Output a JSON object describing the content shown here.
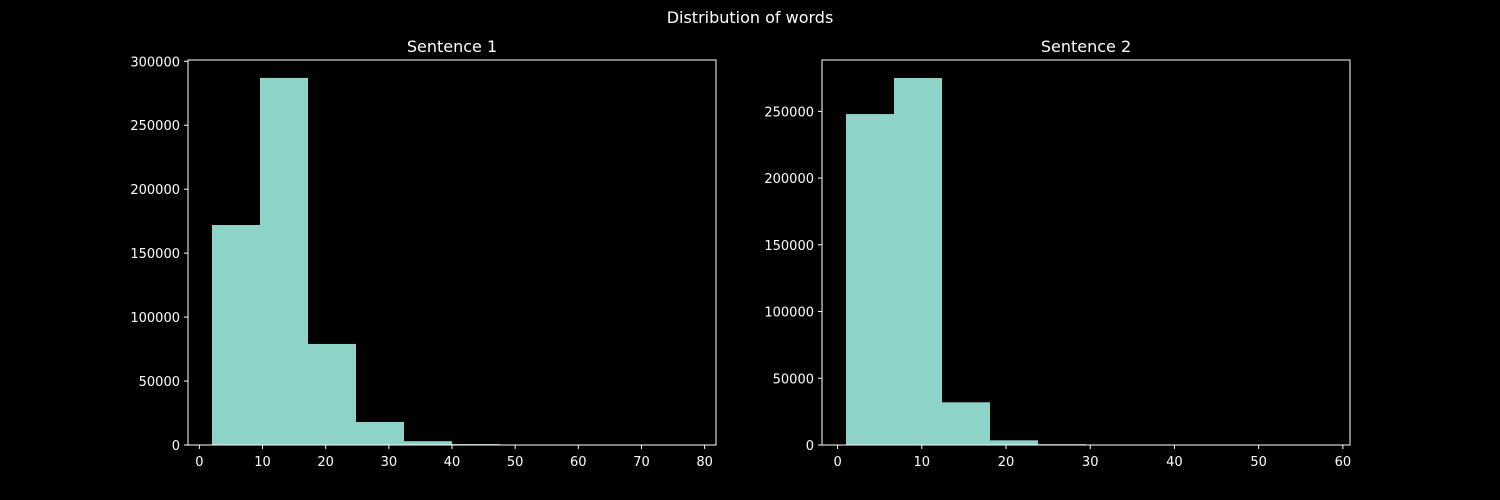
{
  "figure": {
    "suptitle": "Distribution of words",
    "background": "#000000",
    "bar_color": "#8dd3c7",
    "axis_color": "#ffffff"
  },
  "chart_data": [
    {
      "type": "histogram",
      "title": "Sentence 1",
      "xlabel": "",
      "ylabel": "",
      "xlim": [
        -1.8,
        81.8
      ],
      "ylim": [
        0,
        301000
      ],
      "xticks": [
        0,
        10,
        20,
        30,
        40,
        50,
        60,
        70,
        80
      ],
      "yticks": [
        0,
        50000,
        100000,
        150000,
        200000,
        250000,
        300000
      ],
      "bins": [
        {
          "x0": 2.0,
          "x1": 9.6,
          "count": 172000
        },
        {
          "x0": 9.6,
          "x1": 17.2,
          "count": 287000
        },
        {
          "x0": 17.2,
          "x1": 24.8,
          "count": 79000
        },
        {
          "x0": 24.8,
          "x1": 32.4,
          "count": 18000
        },
        {
          "x0": 32.4,
          "x1": 40.0,
          "count": 3000
        },
        {
          "x0": 40.0,
          "x1": 47.6,
          "count": 700
        },
        {
          "x0": 47.6,
          "x1": 55.2,
          "count": 150
        },
        {
          "x0": 55.2,
          "x1": 62.8,
          "count": 50
        },
        {
          "x0": 62.8,
          "x1": 70.4,
          "count": 20
        },
        {
          "x0": 70.4,
          "x1": 78.0,
          "count": 10
        }
      ]
    },
    {
      "type": "histogram",
      "title": "Sentence 2",
      "xlabel": "",
      "ylabel": "",
      "xlim": [
        -1.85,
        60.85
      ],
      "ylim": [
        0,
        288500
      ],
      "xticks": [
        0,
        10,
        20,
        30,
        40,
        50,
        60
      ],
      "yticks": [
        0,
        50000,
        100000,
        150000,
        200000,
        250000
      ],
      "bins": [
        {
          "x0": 1.0,
          "x1": 6.7,
          "count": 248000
        },
        {
          "x0": 6.7,
          "x1": 12.4,
          "count": 275000
        },
        {
          "x0": 12.4,
          "x1": 18.1,
          "count": 32000
        },
        {
          "x0": 18.1,
          "x1": 23.8,
          "count": 3500
        },
        {
          "x0": 23.8,
          "x1": 29.5,
          "count": 600
        },
        {
          "x0": 29.5,
          "x1": 35.2,
          "count": 120
        },
        {
          "x0": 35.2,
          "x1": 40.9,
          "count": 40
        },
        {
          "x0": 40.9,
          "x1": 46.6,
          "count": 15
        },
        {
          "x0": 46.6,
          "x1": 52.3,
          "count": 8
        },
        {
          "x0": 52.3,
          "x1": 58.0,
          "count": 5
        }
      ]
    }
  ]
}
